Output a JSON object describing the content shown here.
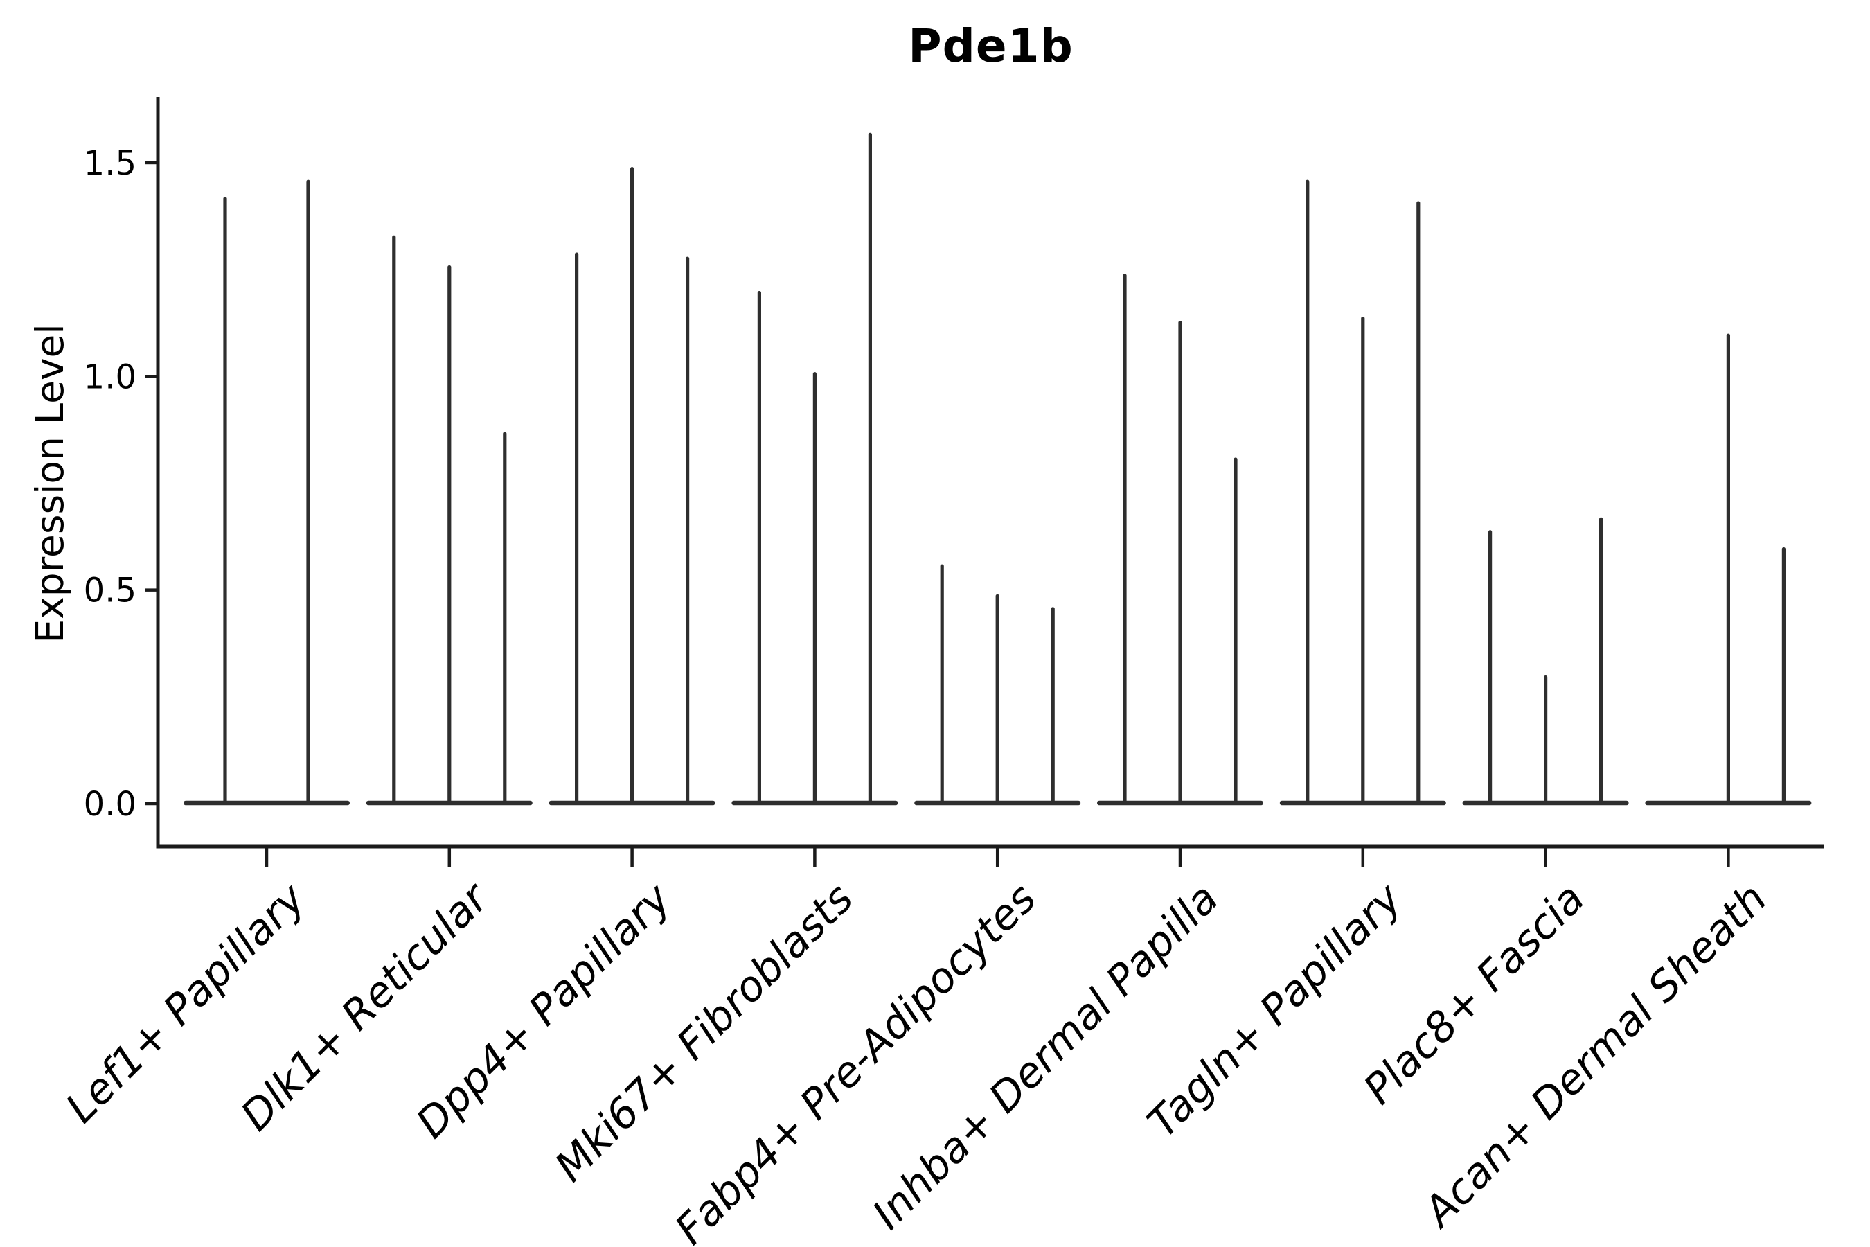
{
  "chart_data": {
    "type": "violin",
    "title": "Pde1b",
    "ylabel": "Expression Level",
    "xlabel": "",
    "yticks": [
      0.0,
      0.5,
      1.0,
      1.5
    ],
    "ytick_labels": [
      "0.0",
      "0.5",
      "1.0",
      "1.5"
    ],
    "ylim": [
      -0.08,
      1.66
    ],
    "grid": false,
    "legend_position": "none",
    "x_tick_label_rotation_deg": 45,
    "categories": [
      "Lef1+ Papillary",
      "Dlk1+ Reticular",
      "Dpp4+ Papillary",
      "Mki67+ Fibroblasts",
      "Fabp4+ Pre-Adipocytes",
      "Inhba+ Dermal Papilla",
      "Tagln+ Papillary",
      "Plac8+ Fascia",
      "Acan+ Dermal Sheath"
    ],
    "series": [
      {
        "category": "Lef1+ Papillary",
        "violin_peaks": [
          1.42,
          1.46
        ]
      },
      {
        "category": "Dlk1+ Reticular",
        "violin_peaks": [
          1.33,
          1.26,
          0.87
        ]
      },
      {
        "category": "Dpp4+ Papillary",
        "violin_peaks": [
          1.29,
          1.49,
          1.28
        ]
      },
      {
        "category": "Mki67+ Fibroblasts",
        "violin_peaks": [
          1.2,
          1.01,
          1.57
        ]
      },
      {
        "category": "Fabp4+ Pre-Adipocytes",
        "violin_peaks": [
          0.56,
          0.49,
          0.46
        ]
      },
      {
        "category": "Inhba+ Dermal Papilla",
        "violin_peaks": [
          1.24,
          1.13,
          0.81
        ]
      },
      {
        "category": "Tagln+ Papillary",
        "violin_peaks": [
          1.46,
          1.14,
          1.41
        ]
      },
      {
        "category": "Plac8+ Fascia",
        "violin_peaks": [
          0.64,
          0.3,
          0.67
        ]
      },
      {
        "category": "Acan+ Dermal Sheath",
        "violin_peaks": [
          0.0,
          1.1,
          0.6
        ]
      }
    ],
    "colors": {
      "violin": "#2e2e2e",
      "axis": "#1a1a1a",
      "text": "#000000",
      "background": "#ffffff"
    },
    "note": "Each violin is collapsed near 0 with a thin density spike rising to its maximum expression value; zero-valued violins are flat baselines."
  }
}
